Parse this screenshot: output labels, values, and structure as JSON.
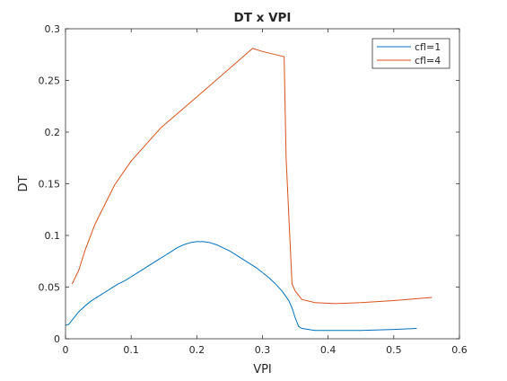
{
  "chart_data": {
    "type": "line",
    "title": "DT x VPI",
    "xlabel": "VPI",
    "ylabel": "DT",
    "xlim": [
      0,
      0.6
    ],
    "ylim": [
      0,
      0.3
    ],
    "xticks": [
      "0",
      "0.1",
      "0.2",
      "0.3",
      "0.4",
      "0.5",
      "0.6"
    ],
    "yticks": [
      "0",
      "0.05",
      "0.1",
      "0.15",
      "0.2",
      "0.25",
      "0.3"
    ],
    "grid": false,
    "legend_position": "top-right",
    "series": [
      {
        "name": "cfl=1",
        "color": "#0072BD",
        "x": [
          0.0,
          0.005,
          0.01,
          0.02,
          0.03,
          0.04,
          0.05,
          0.06,
          0.07,
          0.08,
          0.09,
          0.1,
          0.11,
          0.12,
          0.13,
          0.14,
          0.15,
          0.16,
          0.17,
          0.18,
          0.19,
          0.2,
          0.21,
          0.22,
          0.23,
          0.24,
          0.25,
          0.26,
          0.27,
          0.28,
          0.29,
          0.3,
          0.31,
          0.32,
          0.33,
          0.34,
          0.345,
          0.35,
          0.355,
          0.36,
          0.37,
          0.38,
          0.4,
          0.45,
          0.5,
          0.535
        ],
        "y": [
          0.013,
          0.014,
          0.018,
          0.026,
          0.032,
          0.037,
          0.041,
          0.045,
          0.049,
          0.053,
          0.056,
          0.06,
          0.064,
          0.068,
          0.072,
          0.076,
          0.08,
          0.084,
          0.088,
          0.091,
          0.093,
          0.094,
          0.094,
          0.093,
          0.091,
          0.088,
          0.085,
          0.081,
          0.077,
          0.073,
          0.069,
          0.064,
          0.059,
          0.053,
          0.046,
          0.037,
          0.03,
          0.02,
          0.012,
          0.01,
          0.009,
          0.008,
          0.008,
          0.008,
          0.009,
          0.01
        ]
      },
      {
        "name": "cfl=4",
        "color": "#D95319",
        "x": [
          0.01,
          0.02,
          0.03,
          0.045,
          0.075,
          0.1,
          0.145,
          0.2,
          0.285,
          0.3,
          0.333,
          0.336,
          0.345,
          0.35,
          0.36,
          0.38,
          0.41,
          0.45,
          0.5,
          0.558
        ],
        "y": [
          0.053,
          0.066,
          0.086,
          0.111,
          0.149,
          0.172,
          0.204,
          0.234,
          0.281,
          0.278,
          0.273,
          0.175,
          0.053,
          0.046,
          0.038,
          0.035,
          0.034,
          0.035,
          0.037,
          0.04
        ]
      }
    ]
  }
}
